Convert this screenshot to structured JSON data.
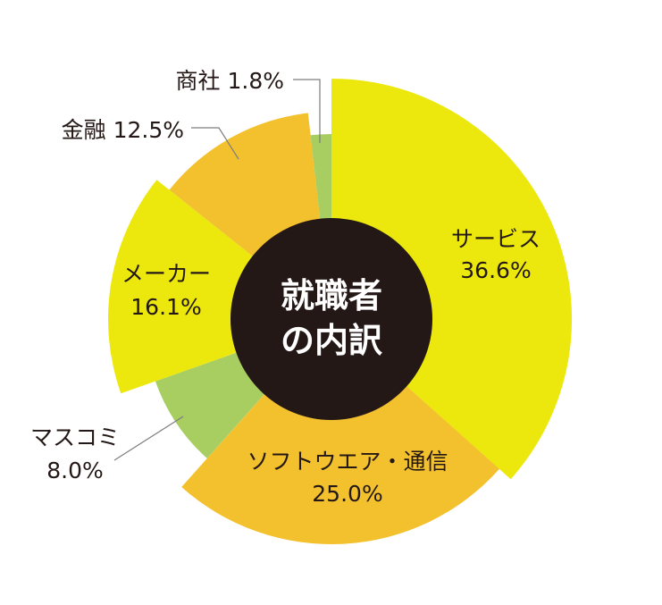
{
  "chart_data": {
    "type": "pie",
    "title_lines": [
      "就職者",
      "の内訳"
    ],
    "categories": [
      "サービス",
      "ソフトウエア・通信",
      "マスコミ",
      "メーカー",
      "金融",
      "商社"
    ],
    "values": [
      36.6,
      25.0,
      8.0,
      16.1,
      12.5,
      1.8
    ],
    "value_labels": [
      "36.6%",
      "25.0%",
      "8.0%",
      "16.1%",
      "12.5%",
      "1.8%"
    ],
    "colors": [
      "#ece80e",
      "#f3c12d",
      "#a8cd60",
      "#ece80e",
      "#f3c12d",
      "#a8cd60"
    ],
    "label_text": {
      "service": [
        "サービス",
        "36.6%"
      ],
      "software": [
        "ソフトウエア・通信",
        "25.0%"
      ],
      "masscomm": [
        "マスコミ",
        "8.0%"
      ],
      "maker": [
        "メーカー",
        "16.1%"
      ],
      "finance": "金融  12.5%",
      "trading": "商社  1.8%"
    }
  }
}
